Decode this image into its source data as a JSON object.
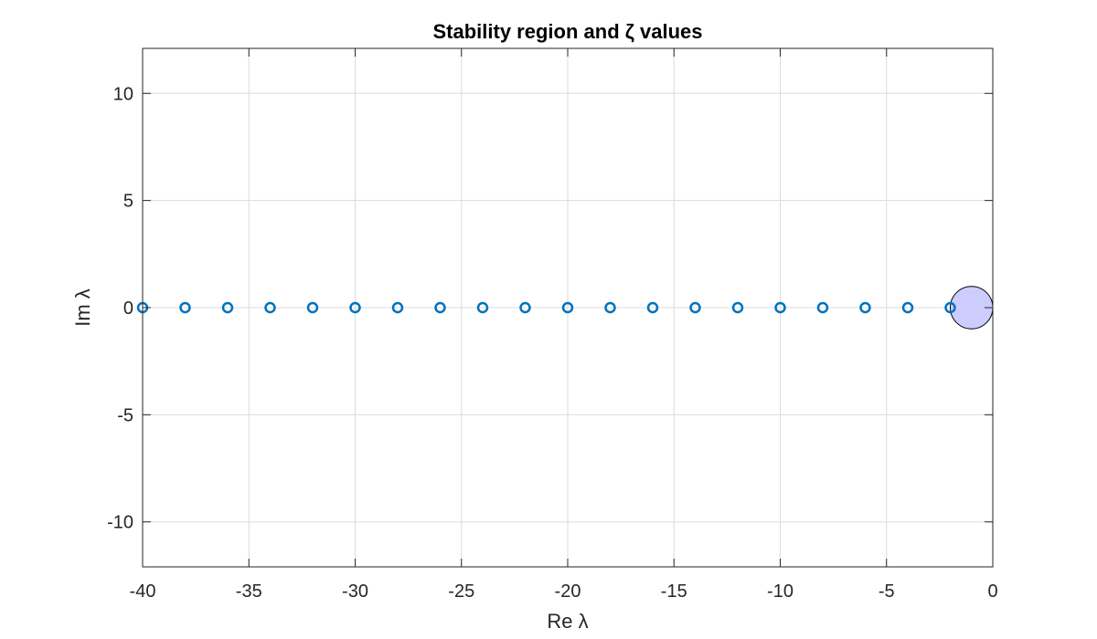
{
  "chart_data": {
    "type": "scatter",
    "title": "Stability region and ζ values",
    "xlabel": "Re λ",
    "ylabel": "Im λ",
    "xlim": [
      -40,
      0
    ],
    "ylim": [
      -12.1,
      12.1
    ],
    "xticks": [
      "-40",
      "-35",
      "-30",
      "-25",
      "-20",
      "-15",
      "-10",
      "-5",
      "0"
    ],
    "xtick_values": [
      -40,
      -35,
      -30,
      -25,
      -20,
      -15,
      -10,
      -5,
      0
    ],
    "yticks": [
      "10",
      "5",
      "0",
      "-5",
      "-10"
    ],
    "ytick_values": [
      10,
      5,
      0,
      -5,
      -10
    ],
    "grid": true,
    "region": {
      "shape": "circle",
      "center": [
        -1,
        0
      ],
      "radius": 1,
      "fill": "#ccccff",
      "edge": "#000000"
    },
    "series": [
      {
        "marker": "circle",
        "color": "#0072bd",
        "x": [
          -40,
          -38,
          -36,
          -34,
          -32,
          -30,
          -28,
          -26,
          -24,
          -22,
          -20,
          -18,
          -16,
          -14,
          -12,
          -10,
          -8,
          -6,
          -4,
          -2
        ],
        "y": [
          0,
          0,
          0,
          0,
          0,
          0,
          0,
          0,
          0,
          0,
          0,
          0,
          0,
          0,
          0,
          0,
          0,
          0,
          0,
          0
        ]
      }
    ]
  }
}
